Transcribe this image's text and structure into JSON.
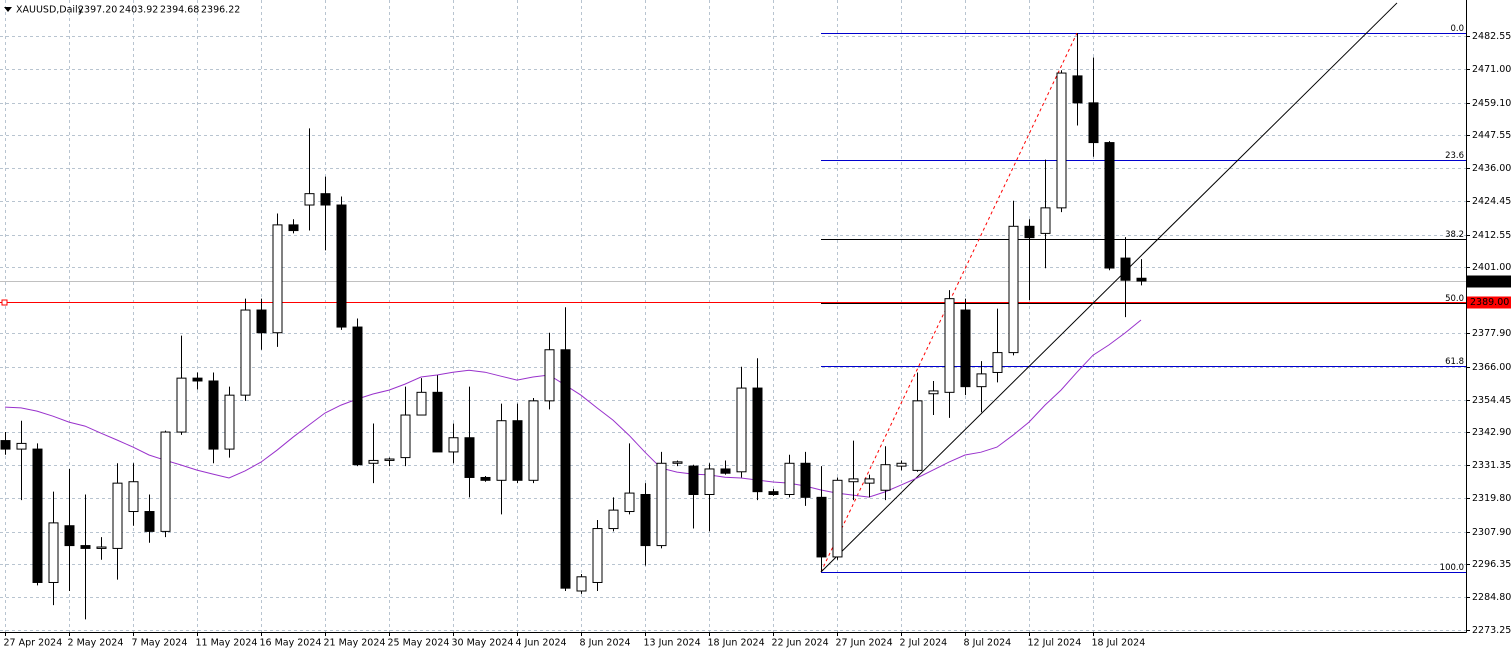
{
  "chart_data": {
    "type": "candlestick",
    "header": {
      "symbol": "XAUUSD,Daily",
      "ohlc": [
        "2397.20",
        "2403.92",
        "2394.68",
        "2396.22"
      ]
    },
    "categories": [
      "27 Apr 2024",
      null,
      null,
      null,
      "2 May 2024",
      null,
      null,
      null,
      "7 May 2024",
      null,
      null,
      null,
      "11 May 2024",
      null,
      null,
      null,
      "16 May 2024",
      null,
      null,
      null,
      "21 May 2024",
      null,
      null,
      null,
      "25 May 2024",
      null,
      null,
      null,
      "30 May 2024",
      null,
      null,
      null,
      "4 Jun 2024",
      null,
      null,
      null,
      "8 Jun 2024",
      null,
      null,
      null,
      "13 Jun 2024",
      null,
      null,
      null,
      "18 Jun 2024",
      null,
      null,
      null,
      "22 Jun 2024",
      null,
      null,
      null,
      "27 Jun 2024",
      null,
      null,
      null,
      "2 Jul 2024",
      null,
      null,
      null,
      "8 Jul 2024",
      null,
      null,
      null,
      "12 Jul 2024",
      null,
      null,
      null,
      "18 Jul 2024",
      null,
      null,
      null
    ],
    "open": [
      2340,
      2337,
      2337,
      2290,
      2310,
      2303,
      2302,
      2302,
      2315,
      2315,
      2308,
      2343,
      2362,
      2361,
      2337,
      2356,
      2386,
      2378,
      2416,
      2423,
      2427,
      2423,
      2380,
      2332,
      2333,
      2334,
      2349,
      2357,
      2336,
      2341,
      2327,
      2326,
      2347,
      2326,
      2354,
      2372,
      2287,
      2290,
      2309,
      2315,
      2321,
      2303,
      2332,
      2331,
      2321,
      2330,
      2329,
      2358.5,
      2322,
      2321,
      2332,
      2320,
      2299,
      2325.5,
      2325,
      2322.5,
      2331,
      2329.5,
      2356.5,
      2357,
      2386,
      2359,
      2364,
      2371,
      2415.5,
      2413,
      2422,
      2468.5,
      2459,
      2445,
      2404.3,
      2397.2
    ],
    "high": [
      2343,
      2347,
      2339,
      2322,
      2330,
      2321,
      2306,
      2332,
      2332,
      2321,
      2343.5,
      2377,
      2364,
      2364,
      2359,
      2390,
      2390,
      2420,
      2418,
      2450,
      2433,
      2426,
      2383,
      2346,
      2334,
      2359,
      2362,
      2363,
      2346,
      2359,
      2327.5,
      2353,
      2353,
      2355,
      2378,
      2387,
      2293,
      2312,
      2320,
      2339,
      2325,
      2336,
      2333,
      2331.5,
      2332,
      2333,
      2366,
      2369,
      2323,
      2335,
      2336,
      2331,
      2327,
      2340,
      2328,
      2338,
      2333,
      2364,
      2361,
      2393,
      2390,
      2368,
      2386.5,
      2424.5,
      2418,
      2439,
      2470.5,
      2483.6,
      2475,
      2445.5,
      2411.7,
      2403.92
    ],
    "low": [
      2335,
      2319,
      2289,
      2282,
      2287,
      2277,
      2298,
      2291,
      2310,
      2304,
      2306,
      2342,
      2358,
      2332,
      2334,
      2354,
      2372,
      2373,
      2413,
      2414,
      2407,
      2379,
      2331,
      2325,
      2331,
      2331,
      2349,
      2336,
      2332,
      2320,
      2325.5,
      2314,
      2325,
      2325,
      2351,
      2287,
      2286,
      2287,
      2308,
      2314,
      2296,
      2302,
      2331,
      2309,
      2308,
      2328,
      2327,
      2319,
      2320.5,
      2320,
      2317,
      2293.7,
      2298,
      2319,
      2320,
      2319,
      2329.5,
      2329,
      2349,
      2348,
      2356,
      2350,
      2360.5,
      2370,
      2389.5,
      2400.7,
      2420.5,
      2451,
      2440,
      2400,
      2383.5,
      2394.68
    ],
    "close": [
      2337,
      2339,
      2290,
      2311,
      2303,
      2302,
      2302.5,
      2325,
      2325.5,
      2308,
      2343,
      2362,
      2361,
      2337,
      2356,
      2386,
      2378,
      2416,
      2414,
      2427,
      2423,
      2380,
      2331.5,
      2333,
      2333.5,
      2349,
      2357,
      2336,
      2341,
      2327,
      2326,
      2347,
      2326,
      2354,
      2372,
      2288,
      2292,
      2309,
      2315.5,
      2321.5,
      2303,
      2332,
      2332.5,
      2321,
      2330,
      2328.5,
      2358.5,
      2322,
      2321,
      2332,
      2320,
      2299,
      2326,
      2326.5,
      2326.5,
      2331.5,
      2332,
      2354,
      2357.5,
      2390,
      2359,
      2363.5,
      2371,
      2415.5,
      2411.5,
      2422,
      2469.5,
      2459,
      2445,
      2400.8,
      2396.5,
      2396.22
    ],
    "up_color": "#ffffff",
    "down_color": "#000000",
    "ma": {
      "color": "#9932cc",
      "values": [
        2351.8,
        2351.5,
        2350.4,
        2348.6,
        2346.5,
        2345.1,
        2342.6,
        2340.2,
        2337.7,
        2334.9,
        2333.1,
        2331.4,
        2329.6,
        2328.2,
        2326.8,
        2329.3,
        2332.4,
        2336.6,
        2341.2,
        2345.5,
        2349.7,
        2352.5,
        2354.6,
        2356.4,
        2357.8,
        2359.9,
        2362.4,
        2363.1,
        2364.1,
        2364.8,
        2364.1,
        2362.7,
        2361.3,
        2362.4,
        2363.1,
        2359.6,
        2356.0,
        2351.5,
        2347.2,
        2341.9,
        2335.9,
        2330.3,
        2328.9,
        2328.2,
        2327.9,
        2327.1,
        2326.8,
        2326.1,
        2325.4,
        2325.0,
        2324.0,
        2322.6,
        2321.5,
        2320.8,
        2320.1,
        2321.9,
        2324.3,
        2326.8,
        2329.6,
        2332.4,
        2334.9,
        2335.9,
        2337.7,
        2341.9,
        2346.5,
        2352.5,
        2357.8,
        2364.1,
        2370.1,
        2373.7,
        2377.9,
        2382.5
      ]
    },
    "fibonacci": {
      "high": 2483.6,
      "low": 2293.7,
      "start": 51,
      "end": 67,
      "color": "#0000cd",
      "trend_color": "#ff0000",
      "levels": [
        {
          "value": 0,
          "label": "0.0"
        },
        23.6,
        38.2,
        {
          "value": 50,
          "label": "50.0"
        },
        61.8,
        {
          "value": 100,
          "label": "100.0"
        }
      ],
      "level_colors": [
        "#0000cd",
        "#0000cd",
        "#000000",
        "#000000",
        "#0000cd",
        "#0000cd"
      ]
    },
    "trendline": {
      "color": "#000000",
      "points": [
        [
          51,
          2293.7
        ],
        [
          87,
          2494.2
        ]
      ]
    },
    "bid": 2396.22,
    "bid_color": "#c0c0c0",
    "alert_line": {
      "value": 2389,
      "label": "2389.00",
      "color": "#ff0000"
    },
    "ylim": [
      2272.55,
      2495.24
    ],
    "yticks": [
      2482.55,
      {
        "value": 2471.0,
        "label": "2471.00"
      },
      {
        "value": 2459.1,
        "label": "2459.10"
      },
      2447.55,
      {
        "value": 2436.0,
        "label": "2436.00"
      },
      2424.45,
      2412.55,
      {
        "value": 2401.0,
        "label": "2401.00"
      },
      {
        "value": 2377.9,
        "label": "2377.90"
      },
      {
        "value": 2366.0,
        "label": "2366.00"
      },
      2354.45,
      {
        "value": 2342.9,
        "label": "2342.90"
      },
      2331.35,
      {
        "value": 2319.8,
        "label": "2319.80"
      },
      {
        "value": 2307.9,
        "label": "2307.90"
      },
      2296.35,
      {
        "value": 2284.8,
        "label": "2284.80"
      },
      2273.25
    ],
    "grid": true
  }
}
